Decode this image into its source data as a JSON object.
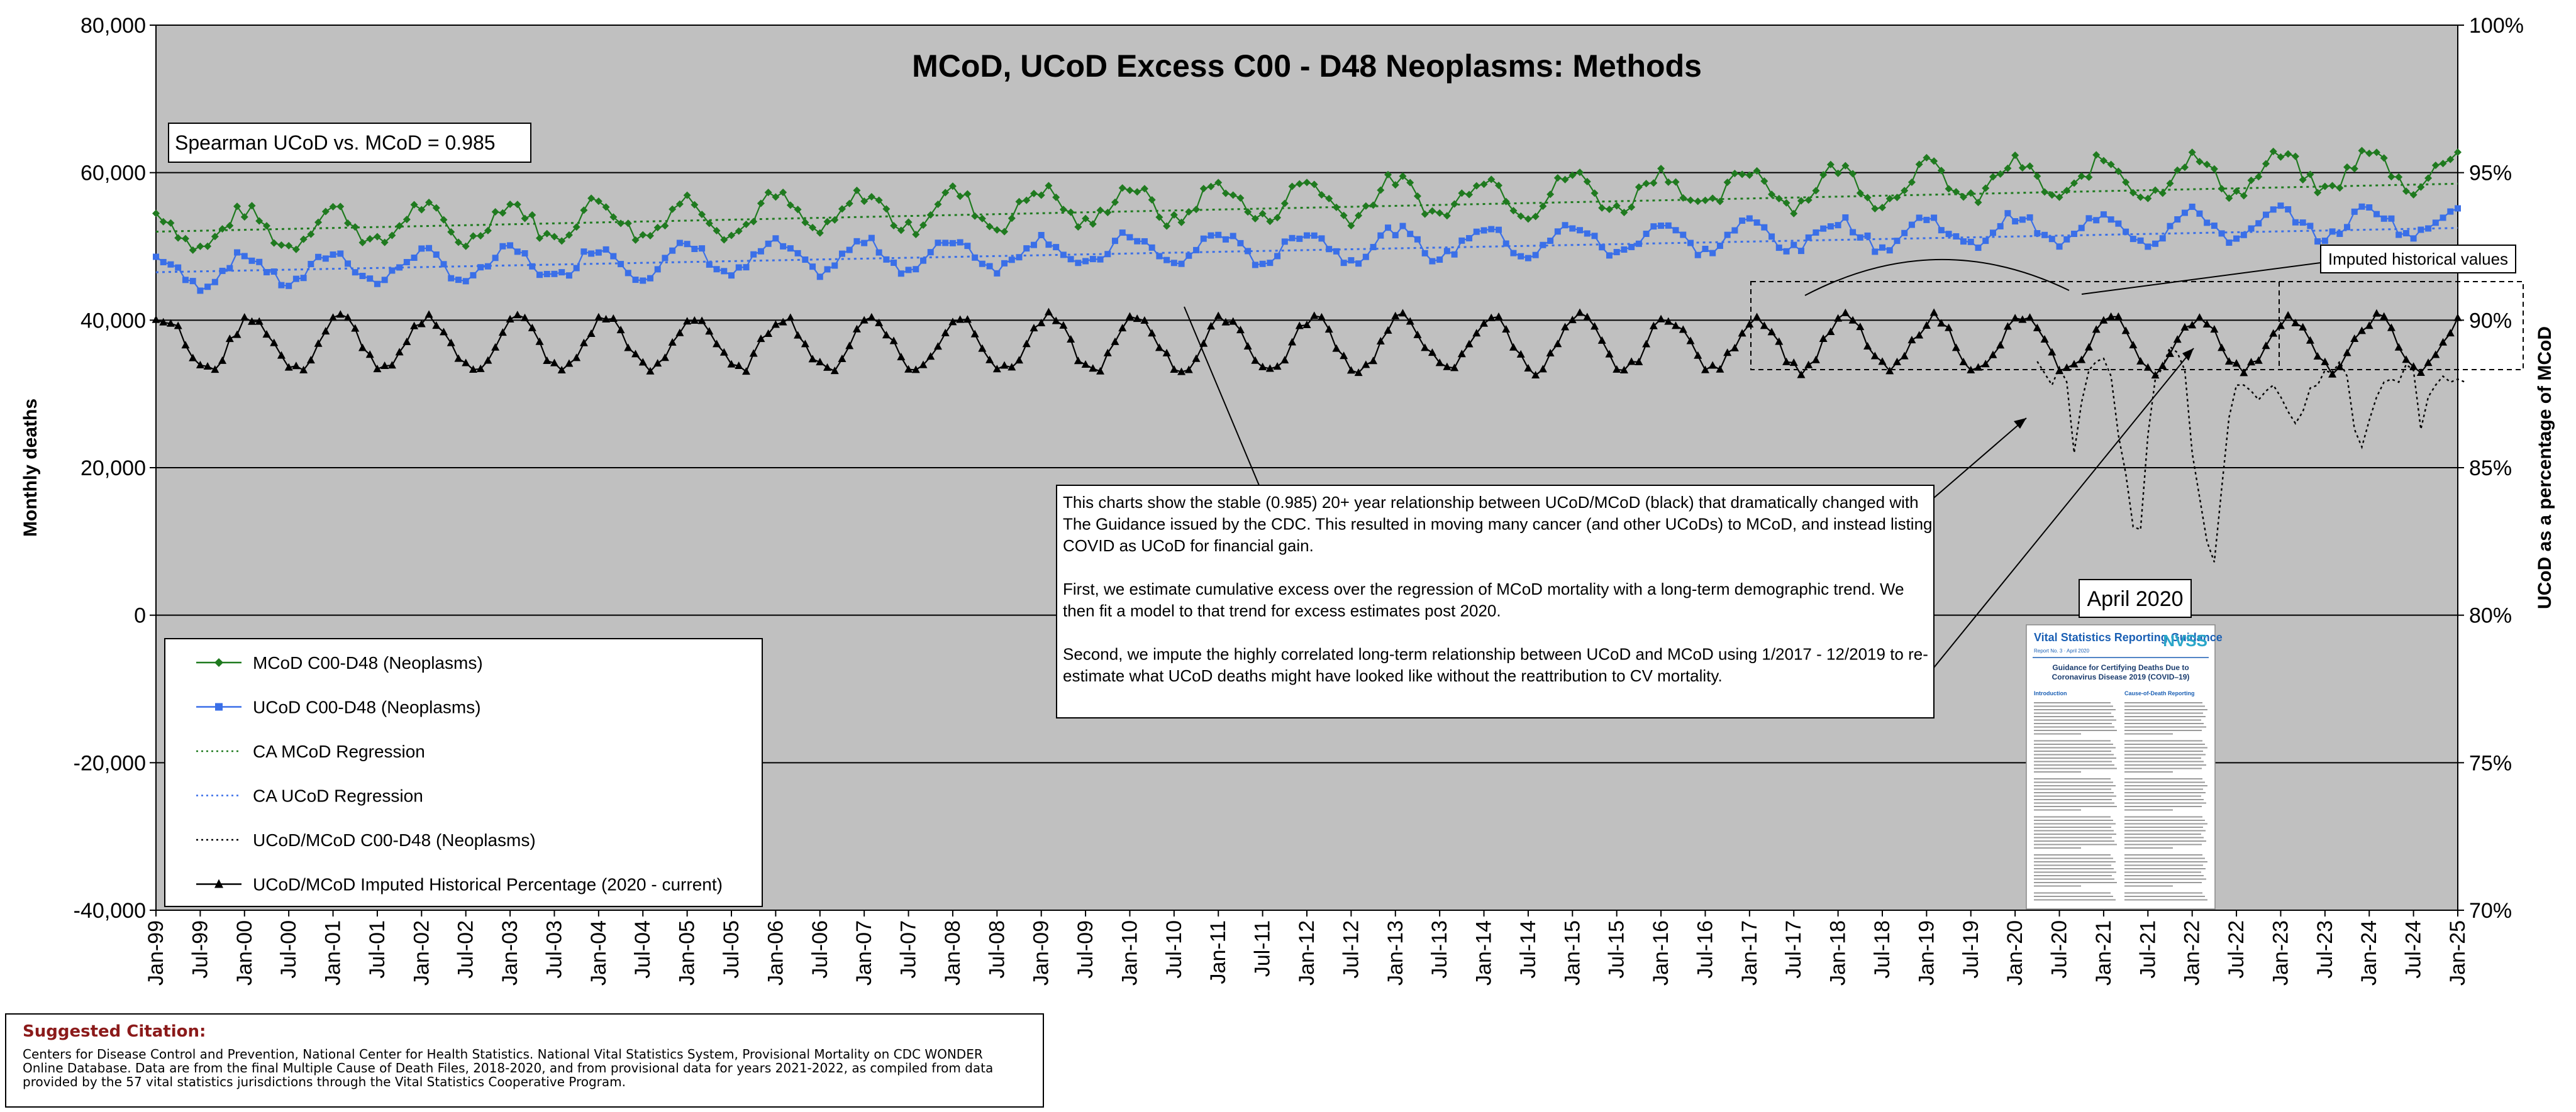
{
  "chart_data": {
    "type": "line",
    "title": "MCoD, UCoD Excess C00 - D48 Neoplasms: Methods",
    "ylabel": "Monthly deaths",
    "y2label": "UCoD as a percentage of MCoD",
    "ylim": [
      -40000,
      80000
    ],
    "y2lim": [
      70,
      100
    ],
    "yticks": [
      "-40,000",
      "-20,000",
      "0",
      "20,000",
      "40,000",
      "60,000",
      "80,000"
    ],
    "y2ticks": [
      "70%",
      "75%",
      "80%",
      "85%",
      "90%",
      "95%",
      "100%"
    ],
    "xticks": [
      "Jan-99",
      "Jul-99",
      "Jan-00",
      "Jul-00",
      "Jan-01",
      "Jul-01",
      "Jan-02",
      "Jul-02",
      "Jan-03",
      "Jul-03",
      "Jan-04",
      "Jul-04",
      "Jan-05",
      "Jul-05",
      "Jan-06",
      "Jul-06",
      "Jan-07",
      "Jul-07",
      "Jan-08",
      "Jul-08",
      "Jan-09",
      "Jul-09",
      "Jan-10",
      "Jul-10",
      "Jan-11",
      "Jul-11",
      "Jan-12",
      "Jul-12",
      "Jan-13",
      "Jul-13",
      "Jan-14",
      "Jul-14",
      "Jan-15",
      "Jul-15",
      "Jan-16",
      "Jul-16",
      "Jan-17",
      "Jul-17",
      "Jan-18",
      "Jul-18",
      "Jan-19",
      "Jul-19",
      "Jan-20",
      "Jul-20",
      "Jan-21",
      "Jul-21",
      "Jan-22",
      "Jul-22",
      "Jan-23",
      "Jul-23",
      "Jan-24",
      "Jul-24",
      "Jan-25"
    ],
    "grid": true,
    "spearman_label": "Spearman UCoD vs. MCoD = 0.985",
    "legend": {
      "placement": "bottom-left",
      "entries": [
        "MCoD C00-D48 (Neoplasms)",
        "UCoD C00-D48 (Neoplasms)",
        "CA MCoD Regression",
        "CA UCoD Regression",
        "UCoD/MCoD C00-D48 (Neoplasms)",
        "UCoD/MCoD Imputed Historical Percentage (2020 - current)"
      ]
    },
    "series": [
      {
        "name": "MCoD C00-D48 (Neoplasms)",
        "color": "#1f7a1f",
        "marker": "diamond",
        "trend_start": 52000,
        "trend_end": 60500,
        "seasonal_amp": 2500
      },
      {
        "name": "UCoD C00-D48 (Neoplasms)",
        "color": "#3a6fe8",
        "marker": "square",
        "trend_start": 46500,
        "trend_end": 53500,
        "seasonal_amp": 2000
      },
      {
        "name": "CA MCoD Regression",
        "color": "#1f7a1f",
        "style": "dotted",
        "start": 52000,
        "end": 58500
      },
      {
        "name": "CA UCoD Regression",
        "color": "#3a6fe8",
        "style": "dotted",
        "start": 46500,
        "end": 52500
      },
      {
        "name": "UCoD/MCoD C00-D48 (Neoplasms)",
        "color": "#000000",
        "style": "dotted",
        "axis": "right",
        "note": "diverges from Apr-2020 onward",
        "unit": "percent"
      },
      {
        "name": "UCoD/MCoD Imputed Historical Percentage (2020 - current)",
        "color": "#000000",
        "marker": "triangle",
        "axis": "right",
        "center": 89.2,
        "amp": 0.9,
        "unit": "percent"
      }
    ],
    "ucod_mcod_observed_2020_2024": [
      88.6,
      88.2,
      87.8,
      88.4,
      87.9,
      85.5,
      87.2,
      88.3,
      88.6,
      88.7,
      88.1,
      86.1,
      84.8,
      83.0,
      82.9,
      86.1,
      88.0,
      88.4,
      89.1,
      88.9,
      88.3,
      85.5,
      84.0,
      82.5,
      81.8,
      84.3,
      86.7,
      87.8,
      87.8,
      87.6,
      87.3,
      87.6,
      87.8,
      87.4,
      86.9,
      86.5,
      86.9,
      87.7,
      87.8,
      88.3,
      88.2,
      88.6,
      88.1,
      86.3,
      85.7,
      86.6,
      87.4,
      87.9,
      88.0,
      87.9,
      88.5,
      88.3,
      86.3,
      87.4,
      87.8,
      88.1,
      87.9,
      88.0,
      87.9
    ],
    "annotations": {
      "explanation": [
        "This charts show the stable (0.985) 20+ year relationship between UCoD/MCoD (black) that dramatically changed with",
        "The Guidance issued by the CDC. This resulted in moving many cancer (and other UCoDs) to MCoD, and instead listing",
        "COVID as UCoD for financial gain.",
        "",
        "First, we estimate cumulative excess over the regression of MCoD mortality with a long-term demographic trend. We",
        "then fit a model to that trend for excess estimates post 2020.",
        "",
        "Second, we impute the highly correlated long-term relationship between UCoD and MCoD using 1/2017 -  12/2019 to re-",
        "estimate what UCoD deaths might have looked like without the reattribution to CV mortality."
      ],
      "imputed_label": "Imputed historical values",
      "april_label": "April 2020",
      "guidance_doc": {
        "header": "Vital Statistics Reporting Guidance",
        "subheader": "Report No. 3 · April 2020",
        "logo": "NVSS",
        "title_line1": "Guidance for Certifying Deaths Due to",
        "title_line2": "Coronavirus Disease 2019 (COVID–19)",
        "left_heading": "Introduction",
        "right_heading": "Cause-of-Death Reporting"
      }
    }
  },
  "citation": {
    "title": "Suggested Citation:",
    "body": "Centers for Disease Control and Prevention, National Center for Health Statistics. National Vital Statistics System, Provisional Mortality on CDC WONDER Online Database. Data are from the final Multiple Cause of Death Files, 2018-2020, and from provisional data for years 2021-2022, as compiled from data provided by the 57 vital statistics jurisdictions through the Vital Statistics Cooperative Program."
  }
}
